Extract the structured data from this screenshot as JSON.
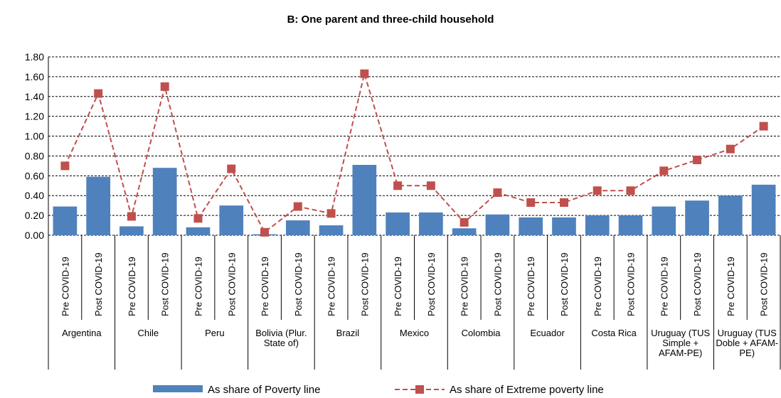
{
  "chart_data": {
    "type": "bar_line",
    "title": "B: One parent and three-child household",
    "groups": [
      "Argentina",
      "Chile",
      "Peru",
      "Bolivia (Plur. State of)",
      "Brazil",
      "Mexico",
      "Colombia",
      "Ecuador",
      "Costa Rica",
      "Uruguay (TUS Simple + AFAM-PE)",
      "Uruguay (TUS Doble + AFAM-PE)"
    ],
    "categories": [
      "Pre COVID-19",
      "Post COVID-19",
      "Pre COVID-19",
      "Post COVID-19",
      "Pre COVID-19",
      "Post COVID-19",
      "Pre COVID-19",
      "Post COVID-19",
      "Pre COVID-19",
      "Post COVID-19",
      "Pre COVID-19",
      "Post COVID-19",
      "Pre COVID-19",
      "Post COVID-19",
      "Pre COVID-19",
      "Post COVID-19",
      "Pre COVID-19",
      "Post COVID-19",
      "Pre COVID-19",
      "Post COVID-19",
      "Pre COVID-19",
      "Post COVID-19"
    ],
    "series": [
      {
        "name": "As share of Poverty line",
        "type": "bar",
        "color": "#4f81bd",
        "values": [
          0.29,
          0.59,
          0.09,
          0.68,
          0.08,
          0.3,
          0.01,
          0.15,
          0.1,
          0.71,
          0.23,
          0.23,
          0.07,
          0.21,
          0.18,
          0.18,
          0.2,
          0.2,
          0.29,
          0.35,
          0.4,
          0.51
        ]
      },
      {
        "name": "As share of Extreme poverty line",
        "type": "line",
        "color": "#c0504d",
        "values": [
          0.7,
          1.43,
          0.19,
          1.5,
          0.17,
          0.67,
          0.03,
          0.29,
          0.22,
          1.63,
          0.5,
          0.5,
          0.13,
          0.43,
          0.33,
          0.33,
          0.45,
          0.45,
          0.65,
          0.76,
          0.87,
          1.1
        ]
      }
    ],
    "ylim": [
      0,
      1.8
    ],
    "yticks": [
      {
        "value": 0,
        "label": "0.00"
      },
      {
        "value": 0.2,
        "label": "0.20"
      },
      {
        "value": 0.4,
        "label": "0.40"
      },
      {
        "value": 0.6,
        "label": "0.60"
      },
      {
        "value": 0.8,
        "label": "0.80"
      },
      {
        "value": 1,
        "label": "1.00"
      },
      {
        "value": 1.2,
        "label": "1.20"
      },
      {
        "value": 1.4,
        "label": "1.40"
      },
      {
        "value": 1.6,
        "label": "1.60"
      },
      {
        "value": 1.8,
        "label": "1.80"
      }
    ],
    "grid": true,
    "legend": "bottom"
  }
}
